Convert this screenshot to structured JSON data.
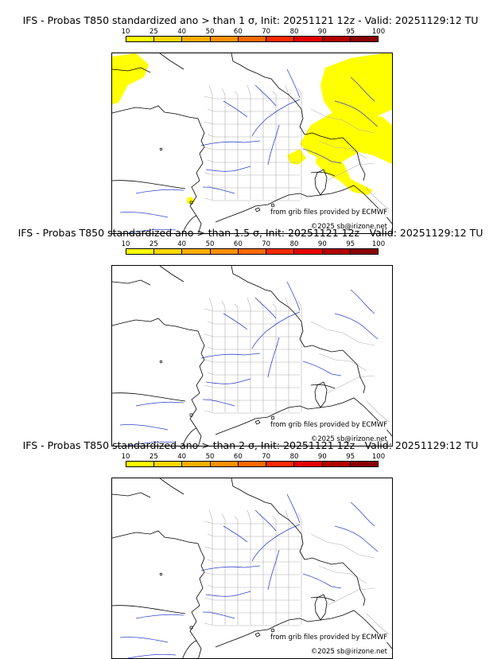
{
  "panels": [
    {
      "title": "IFS - Probas T850  standardized ano > than 1 σ, Init: 20251121 12z - Valid: 20251129:12 TU",
      "threshold_sigma": 1,
      "has_anomaly": true
    },
    {
      "title": "IFS - Probas T850  standardized ano > than 1.5 σ, Init: 20251121 12z - Valid: 20251129:12 TU",
      "threshold_sigma": 1.5,
      "has_anomaly": false
    },
    {
      "title": "IFS - Probas T850  standardized ano > than 2 σ, Init: 20251121 12z - Valid: 20251129:12 TU",
      "threshold_sigma": 2,
      "has_anomaly": false
    }
  ],
  "scale": {
    "ticks": [
      "10",
      "25",
      "40",
      "50",
      "60",
      "70",
      "80",
      "90",
      "95",
      "100"
    ],
    "colors": [
      "#ffff00",
      "#ffd700",
      "#ffae00",
      "#ff9000",
      "#ff6a00",
      "#ff2a00",
      "#e60000",
      "#b40000",
      "#8c0000",
      "#5a0000"
    ]
  },
  "credits": {
    "provider": "from grib files provided by ECMWF",
    "copyright": "©2025 sb@irizone.net"
  },
  "colors": {
    "coastline": "#000000",
    "borders": "#000000",
    "regions": "#b0b0b0",
    "rivers": "#3344cc",
    "anomaly": "#ffff00"
  }
}
